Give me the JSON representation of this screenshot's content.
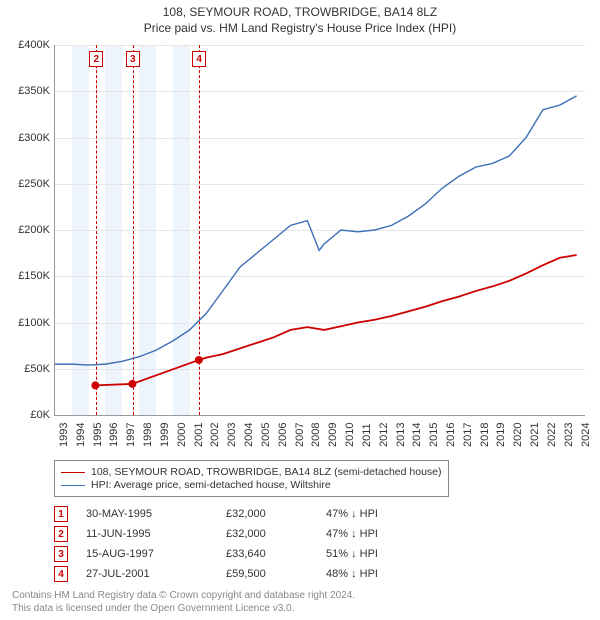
{
  "title_line1": "108, SEYMOUR ROAD, TROWBRIDGE, BA14 8LZ",
  "title_line2": "Price paid vs. HM Land Registry's House Price Index (HPI)",
  "chart": {
    "type": "line",
    "background_color": "#ffffff",
    "grid_color": "#e6e6e6",
    "axis_color": "#999999",
    "tick_fontsize": 11,
    "x": {
      "years": [
        1993,
        1994,
        1995,
        1996,
        1997,
        1998,
        1999,
        2000,
        2001,
        2002,
        2003,
        2004,
        2005,
        2006,
        2007,
        2008,
        2009,
        2010,
        2011,
        2012,
        2013,
        2014,
        2015,
        2016,
        2017,
        2018,
        2019,
        2020,
        2021,
        2022,
        2023,
        2024
      ],
      "min": 1993,
      "max": 2024.5
    },
    "y": {
      "min": 0,
      "max": 400000,
      "tick_step": 50000,
      "labels": [
        "£0K",
        "£50K",
        "£100K",
        "£150K",
        "£200K",
        "£250K",
        "£300K",
        "£350K",
        "£400K"
      ]
    },
    "band_years": [
      1994,
      1996,
      1998,
      2000
    ],
    "band_color": "#eef4fb",
    "series": {
      "hpi": {
        "label": "HPI: Average price, semi-detached house, Wiltshire",
        "color": "#3b6fb6",
        "line_width": 1.4,
        "points": [
          [
            1993,
            55000
          ],
          [
            1994,
            55000
          ],
          [
            1995,
            54000
          ],
          [
            1996,
            55000
          ],
          [
            1997,
            58000
          ],
          [
            1998,
            63000
          ],
          [
            1999,
            70000
          ],
          [
            2000,
            80000
          ],
          [
            2001,
            92000
          ],
          [
            2002,
            110000
          ],
          [
            2003,
            135000
          ],
          [
            2004,
            160000
          ],
          [
            2005,
            175000
          ],
          [
            2006,
            190000
          ],
          [
            2007,
            205000
          ],
          [
            2008,
            210000
          ],
          [
            2008.7,
            178000
          ],
          [
            2009,
            185000
          ],
          [
            2010,
            200000
          ],
          [
            2011,
            198000
          ],
          [
            2012,
            200000
          ],
          [
            2013,
            205000
          ],
          [
            2014,
            215000
          ],
          [
            2015,
            228000
          ],
          [
            2016,
            245000
          ],
          [
            2017,
            258000
          ],
          [
            2018,
            268000
          ],
          [
            2019,
            272000
          ],
          [
            2020,
            280000
          ],
          [
            2021,
            300000
          ],
          [
            2022,
            330000
          ],
          [
            2023,
            335000
          ],
          [
            2024,
            345000
          ]
        ]
      },
      "paid": {
        "label": "108, SEYMOUR ROAD, TROWBRIDGE, BA14 8LZ (semi-detached house)",
        "color": "#cc0000",
        "line_width": 1.8,
        "points": [
          [
            1995.4,
            32000
          ],
          [
            1997.6,
            33640
          ],
          [
            2001.55,
            59500
          ],
          [
            2002,
            62000
          ],
          [
            2003,
            66000
          ],
          [
            2004,
            72000
          ],
          [
            2005,
            78000
          ],
          [
            2006,
            84000
          ],
          [
            2007,
            92000
          ],
          [
            2008,
            95000
          ],
          [
            2009,
            92000
          ],
          [
            2010,
            96000
          ],
          [
            2011,
            100000
          ],
          [
            2012,
            103000
          ],
          [
            2013,
            107000
          ],
          [
            2014,
            112000
          ],
          [
            2015,
            117000
          ],
          [
            2016,
            123000
          ],
          [
            2017,
            128000
          ],
          [
            2018,
            134000
          ],
          [
            2019,
            139000
          ],
          [
            2020,
            145000
          ],
          [
            2021,
            153000
          ],
          [
            2022,
            162000
          ],
          [
            2023,
            170000
          ],
          [
            2024,
            173000
          ]
        ],
        "sale_markers": {
          "radius": 4,
          "color": "#cc0000",
          "indices": [
            0,
            1,
            2
          ]
        }
      }
    },
    "event_markers": [
      {
        "n": "1",
        "year": 1995.41
      },
      {
        "n": "2",
        "year": 1995.45
      },
      {
        "n": "3",
        "year": 1997.62
      },
      {
        "n": "4",
        "year": 2001.57
      }
    ],
    "marker_line_color": "#cc0000",
    "marker_box_border": "#cc0000"
  },
  "legend": {
    "border_color": "#888888",
    "items": [
      {
        "key": "paid",
        "color": "#cc0000",
        "width": 1.8
      },
      {
        "key": "hpi",
        "color": "#3b6fb6",
        "width": 1.4
      }
    ]
  },
  "transactions": {
    "rows": [
      {
        "n": "1",
        "date": "30-MAY-1995",
        "price": "£32,000",
        "delta": "47% ↓ HPI"
      },
      {
        "n": "2",
        "date": "11-JUN-1995",
        "price": "£32,000",
        "delta": "47% ↓ HPI"
      },
      {
        "n": "3",
        "date": "15-AUG-1997",
        "price": "£33,640",
        "delta": "51% ↓ HPI"
      },
      {
        "n": "4",
        "date": "27-JUL-2001",
        "price": "£59,500",
        "delta": "48% ↓ HPI"
      }
    ]
  },
  "footer_line1": "Contains HM Land Registry data © Crown copyright and database right 2024.",
  "footer_line2": "This data is licensed under the Open Government Licence v3.0."
}
